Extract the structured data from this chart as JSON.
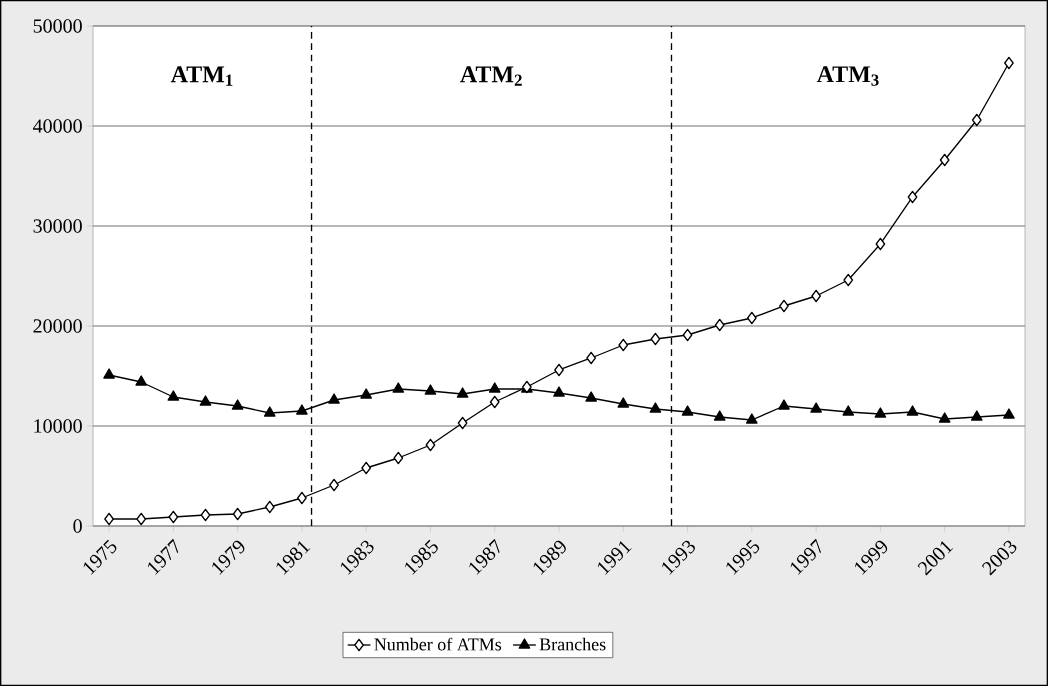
{
  "chart_data": {
    "type": "line",
    "x": [
      1975,
      1976,
      1977,
      1978,
      1979,
      1980,
      1981,
      1982,
      1983,
      1984,
      1985,
      1986,
      1987,
      1988,
      1989,
      1990,
      1991,
      1992,
      1993,
      1994,
      1995,
      1996,
      1997,
      1998,
      1999,
      2000,
      2001,
      2002,
      2003
    ],
    "series": [
      {
        "name": "Number of ATMs",
        "color": "#000000",
        "marker": "diamond",
        "values": [
          700,
          700,
          900,
          1100,
          1200,
          1900,
          2800,
          4100,
          5800,
          6800,
          8100,
          10300,
          12400,
          13900,
          15600,
          16800,
          18100,
          18700,
          19100,
          20100,
          20800,
          22000,
          23000,
          24600,
          28200,
          32900,
          36600,
          40600,
          46300
        ]
      },
      {
        "name": "Branches",
        "color": "#000000",
        "marker": "triangle",
        "values": [
          15100,
          14400,
          12900,
          12400,
          12000,
          11300,
          11500,
          12600,
          13100,
          13700,
          13500,
          13200,
          13700,
          13700,
          13300,
          12800,
          12200,
          11700,
          11400,
          10900,
          10600,
          12000,
          11700,
          11400,
          11200,
          11400,
          10700,
          10900,
          11100
        ]
      }
    ],
    "xlim": [
      1974.5,
      2003.5
    ],
    "xticks": [
      1975,
      1977,
      1979,
      1981,
      1983,
      1985,
      1987,
      1989,
      1991,
      1993,
      1995,
      1997,
      1999,
      2001,
      2003
    ],
    "ylim": [
      0,
      50000
    ],
    "yticks": [
      0,
      10000,
      20000,
      30000,
      40000,
      50000
    ],
    "ref_lines": [
      {
        "axis": "x",
        "value": 1981.3,
        "line_style": "dashed"
      },
      {
        "axis": "x",
        "value": 1992.5,
        "line_style": "dashed"
      }
    ],
    "annotations": [
      "ATM$_{1}$",
      "ATM$_{2}$",
      "ATM$_{3}$"
    ],
    "grid": "y",
    "legend": "bottom",
    "line_style": "solid"
  }
}
